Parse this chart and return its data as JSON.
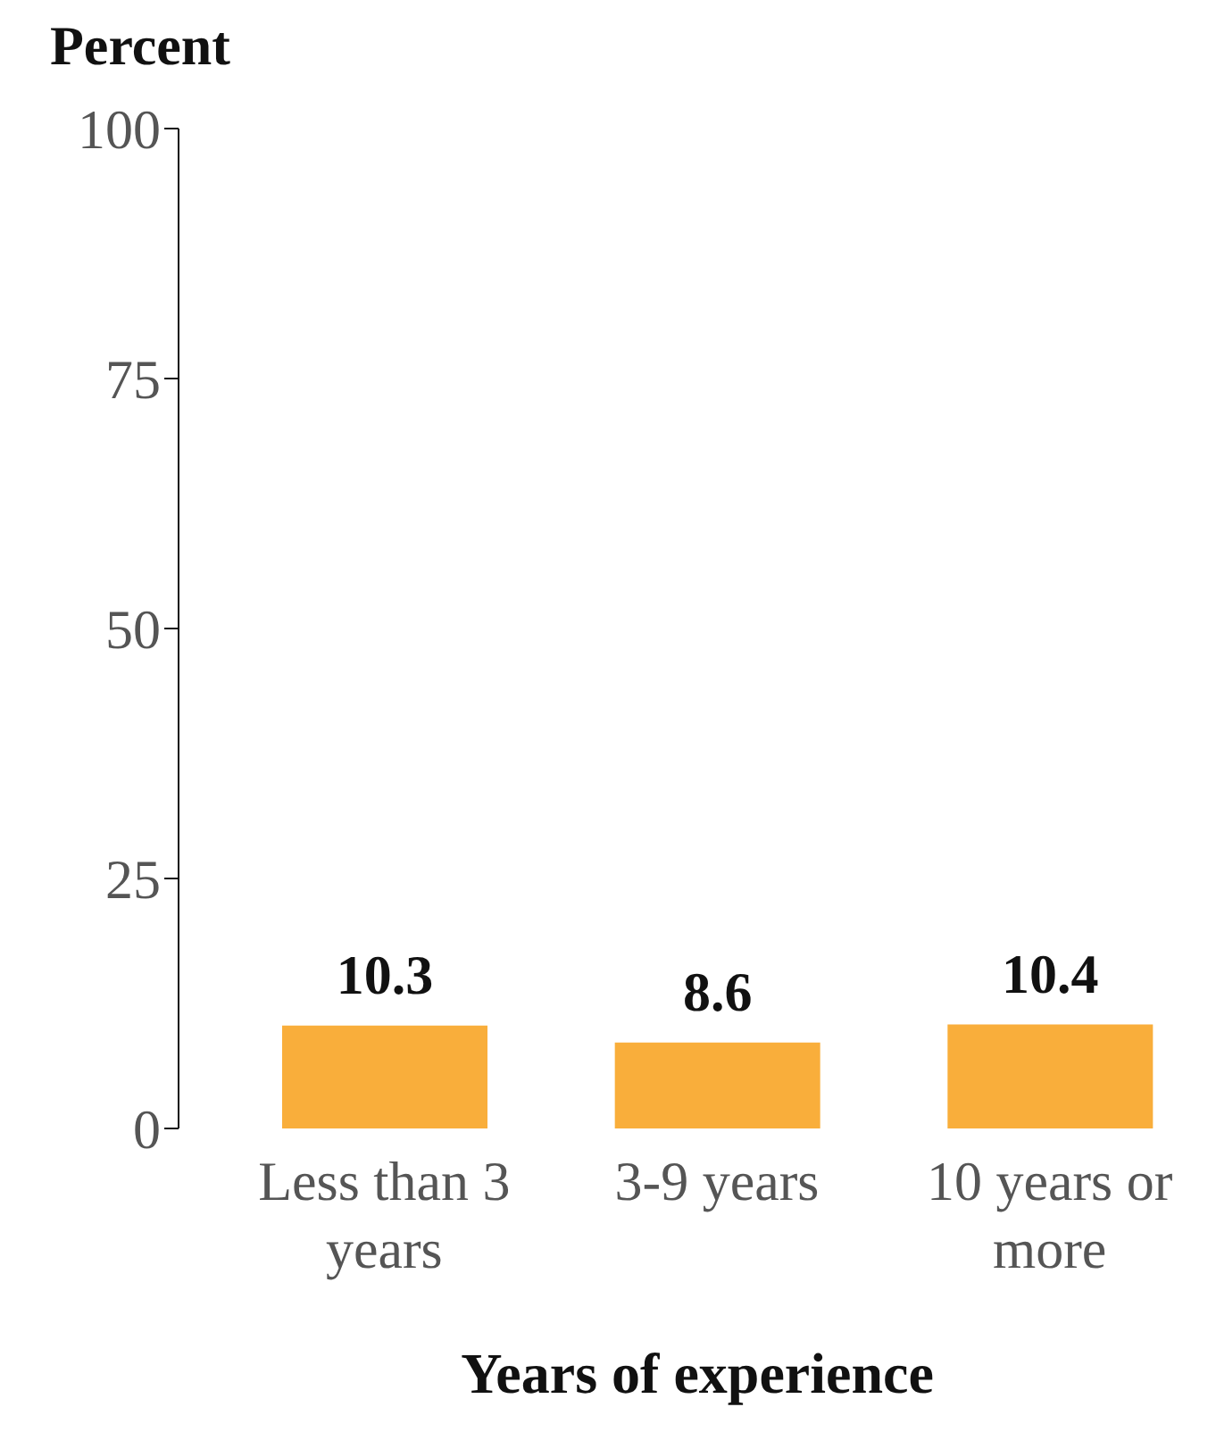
{
  "chart_data": {
    "type": "bar",
    "ylabel": "Percent",
    "xlabel": "Years of experience",
    "categories": [
      "Less than 3 years",
      "3-9 years",
      "10 years or more"
    ],
    "values": [
      10.3,
      8.6,
      10.4
    ],
    "color": "#f9ae3b",
    "ylim": [
      0,
      100
    ],
    "yticks": [
      0,
      25,
      50,
      75,
      100
    ],
    "grid": false,
    "data_labels": true
  }
}
